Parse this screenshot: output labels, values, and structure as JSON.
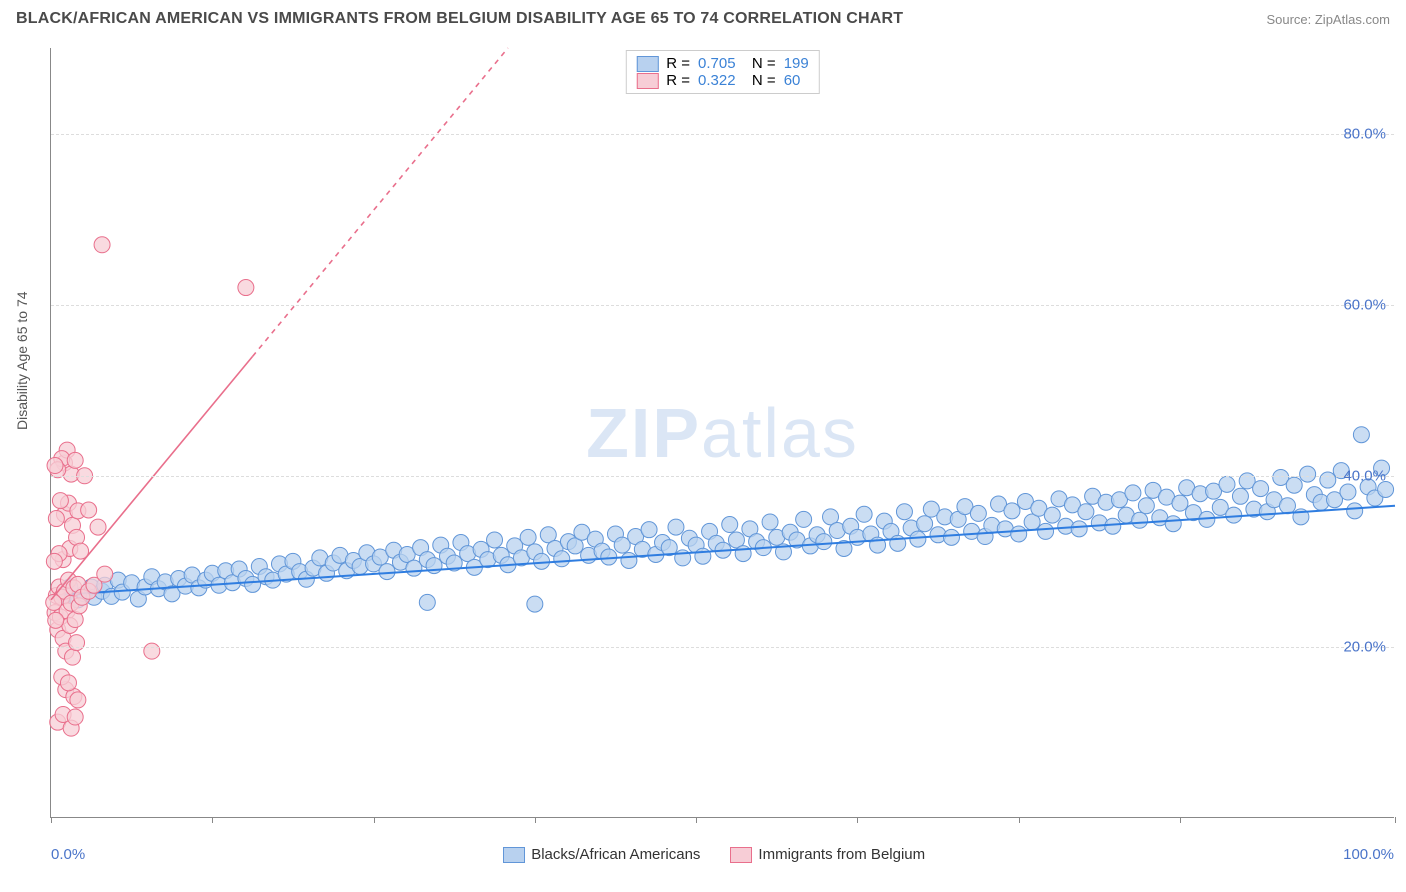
{
  "title": "BLACK/AFRICAN AMERICAN VS IMMIGRANTS FROM BELGIUM DISABILITY AGE 65 TO 74 CORRELATION CHART",
  "source": "Source: ZipAtlas.com",
  "ylabel": "Disability Age 65 to 74",
  "watermark_a": "ZIP",
  "watermark_b": "atlas",
  "chart": {
    "type": "scatter",
    "xlim": [
      0,
      100
    ],
    "ylim": [
      0,
      90
    ],
    "xticks": [
      0,
      12,
      24,
      36,
      48,
      60,
      72,
      84,
      100
    ],
    "yticks": [
      20,
      40,
      60,
      80
    ],
    "ytick_labels": [
      "20.0%",
      "40.0%",
      "60.0%",
      "80.0%"
    ],
    "xaxis_labels": {
      "min": "0.0%",
      "max": "100.0%"
    },
    "grid_color": "#dddddd",
    "axis_color": "#888888",
    "background_color": "#ffffff",
    "marker_radius": 8,
    "marker_stroke_width": 1,
    "label_color": "#4a74c9",
    "series": [
      {
        "name": "Blacks/African Americans",
        "fill": "#b8d1ef",
        "stroke": "#6196d8",
        "R": "0.705",
        "N": "199",
        "trend": {
          "x1": 0,
          "y1": 26,
          "x2": 100,
          "y2": 36.5,
          "dash_from_x": null,
          "color": "#2f7de0",
          "width": 2
        },
        "points": [
          [
            1,
            26
          ],
          [
            1.4,
            27
          ],
          [
            2,
            25.5
          ],
          [
            2.5,
            26.2
          ],
          [
            3,
            27
          ],
          [
            3.2,
            25.8
          ],
          [
            3.8,
            26.5
          ],
          [
            4,
            27.2
          ],
          [
            4.5,
            25.9
          ],
          [
            5,
            27.8
          ],
          [
            5.3,
            26.4
          ],
          [
            6,
            27.5
          ],
          [
            6.5,
            25.6
          ],
          [
            7,
            27
          ],
          [
            7.5,
            28.2
          ],
          [
            8,
            26.8
          ],
          [
            8.5,
            27.6
          ],
          [
            9,
            26.2
          ],
          [
            9.5,
            28
          ],
          [
            10,
            27.1
          ],
          [
            10.5,
            28.4
          ],
          [
            11,
            26.9
          ],
          [
            11.5,
            27.8
          ],
          [
            12,
            28.6
          ],
          [
            12.5,
            27.2
          ],
          [
            13,
            28.9
          ],
          [
            13.5,
            27.5
          ],
          [
            14,
            29.1
          ],
          [
            14.5,
            28
          ],
          [
            15,
            27.3
          ],
          [
            15.5,
            29.4
          ],
          [
            16,
            28.2
          ],
          [
            16.5,
            27.8
          ],
          [
            17,
            29.7
          ],
          [
            17.5,
            28.5
          ],
          [
            18,
            30
          ],
          [
            18.5,
            28.8
          ],
          [
            19,
            27.9
          ],
          [
            19.5,
            29.2
          ],
          [
            20,
            30.4
          ],
          [
            20.5,
            28.6
          ],
          [
            21,
            29.8
          ],
          [
            21.5,
            30.7
          ],
          [
            22,
            28.9
          ],
          [
            22.5,
            30.1
          ],
          [
            23,
            29.4
          ],
          [
            23.5,
            31
          ],
          [
            24,
            29.7
          ],
          [
            24.5,
            30.5
          ],
          [
            25,
            28.8
          ],
          [
            25.5,
            31.3
          ],
          [
            26,
            29.9
          ],
          [
            26.5,
            30.8
          ],
          [
            27,
            29.2
          ],
          [
            27.5,
            31.6
          ],
          [
            28,
            30.2
          ],
          [
            28.5,
            29.5
          ],
          [
            29,
            31.9
          ],
          [
            29.5,
            30.6
          ],
          [
            30,
            29.8
          ],
          [
            30.5,
            32.2
          ],
          [
            31,
            30.9
          ],
          [
            31.5,
            29.3
          ],
          [
            32,
            31.4
          ],
          [
            32.5,
            30.2
          ],
          [
            33,
            32.5
          ],
          [
            33.5,
            30.7
          ],
          [
            34,
            29.6
          ],
          [
            34.5,
            31.8
          ],
          [
            35,
            30.4
          ],
          [
            35.5,
            32.8
          ],
          [
            36,
            31.1
          ],
          [
            36.5,
            30
          ],
          [
            37,
            33.1
          ],
          [
            37.5,
            31.5
          ],
          [
            38,
            30.3
          ],
          [
            38.5,
            32.3
          ],
          [
            39,
            31.8
          ],
          [
            39.5,
            33.4
          ],
          [
            40,
            30.7
          ],
          [
            40.5,
            32.6
          ],
          [
            41,
            31.2
          ],
          [
            41.5,
            30.5
          ],
          [
            42,
            33.2
          ],
          [
            42.5,
            31.9
          ],
          [
            43,
            30.1
          ],
          [
            43.5,
            32.9
          ],
          [
            44,
            31.4
          ],
          [
            44.5,
            33.7
          ],
          [
            45,
            30.8
          ],
          [
            45.5,
            32.2
          ],
          [
            46,
            31.6
          ],
          [
            46.5,
            34
          ],
          [
            47,
            30.4
          ],
          [
            47.5,
            32.7
          ],
          [
            48,
            31.9
          ],
          [
            48.5,
            30.6
          ],
          [
            49,
            33.5
          ],
          [
            49.5,
            32.1
          ],
          [
            50,
            31.3
          ],
          [
            50.5,
            34.3
          ],
          [
            51,
            32.5
          ],
          [
            51.5,
            30.9
          ],
          [
            52,
            33.8
          ],
          [
            52.5,
            32.3
          ],
          [
            53,
            31.6
          ],
          [
            53.5,
            34.6
          ],
          [
            54,
            32.8
          ],
          [
            54.5,
            31.1
          ],
          [
            55,
            33.4
          ],
          [
            55.5,
            32.5
          ],
          [
            56,
            34.9
          ],
          [
            56.5,
            31.8
          ],
          [
            57,
            33.1
          ],
          [
            57.5,
            32.3
          ],
          [
            58,
            35.2
          ],
          [
            58.5,
            33.6
          ],
          [
            59,
            31.5
          ],
          [
            59.5,
            34.1
          ],
          [
            60,
            32.8
          ],
          [
            60.5,
            35.5
          ],
          [
            61,
            33.2
          ],
          [
            61.5,
            31.9
          ],
          [
            62,
            34.7
          ],
          [
            62.5,
            33.5
          ],
          [
            63,
            32.1
          ],
          [
            63.5,
            35.8
          ],
          [
            64,
            33.9
          ],
          [
            64.5,
            32.6
          ],
          [
            65,
            34.4
          ],
          [
            65.5,
            36.1
          ],
          [
            66,
            33.1
          ],
          [
            66.5,
            35.2
          ],
          [
            67,
            32.8
          ],
          [
            67.5,
            34.9
          ],
          [
            68,
            36.4
          ],
          [
            68.5,
            33.5
          ],
          [
            69,
            35.6
          ],
          [
            69.5,
            32.9
          ],
          [
            70,
            34.2
          ],
          [
            70.5,
            36.7
          ],
          [
            71,
            33.8
          ],
          [
            71.5,
            35.9
          ],
          [
            72,
            33.2
          ],
          [
            72.5,
            37
          ],
          [
            73,
            34.6
          ],
          [
            73.5,
            36.2
          ],
          [
            74,
            33.5
          ],
          [
            74.5,
            35.4
          ],
          [
            75,
            37.3
          ],
          [
            75.5,
            34.1
          ],
          [
            76,
            36.6
          ],
          [
            76.5,
            33.8
          ],
          [
            77,
            35.8
          ],
          [
            77.5,
            37.6
          ],
          [
            78,
            34.5
          ],
          [
            78.5,
            36.9
          ],
          [
            79,
            34.1
          ],
          [
            79.5,
            37.2
          ],
          [
            80,
            35.4
          ],
          [
            80.5,
            38
          ],
          [
            81,
            34.8
          ],
          [
            81.5,
            36.5
          ],
          [
            82,
            38.3
          ],
          [
            82.5,
            35.1
          ],
          [
            83,
            37.5
          ],
          [
            83.5,
            34.4
          ],
          [
            84,
            36.8
          ],
          [
            84.5,
            38.6
          ],
          [
            85,
            35.7
          ],
          [
            85.5,
            37.9
          ],
          [
            86,
            34.9
          ],
          [
            86.5,
            38.2
          ],
          [
            87,
            36.3
          ],
          [
            87.5,
            39
          ],
          [
            88,
            35.4
          ],
          [
            88.5,
            37.6
          ],
          [
            89,
            39.4
          ],
          [
            89.5,
            36.1
          ],
          [
            90,
            38.5
          ],
          [
            90.5,
            35.8
          ],
          [
            91,
            37.2
          ],
          [
            91.5,
            39.8
          ],
          [
            92,
            36.5
          ],
          [
            92.5,
            38.9
          ],
          [
            93,
            35.2
          ],
          [
            93.5,
            40.2
          ],
          [
            94,
            37.8
          ],
          [
            94.5,
            36.9
          ],
          [
            95,
            39.5
          ],
          [
            95.5,
            37.2
          ],
          [
            96,
            40.6
          ],
          [
            96.5,
            38.1
          ],
          [
            97,
            35.9
          ],
          [
            97.5,
            44.8
          ],
          [
            98,
            38.7
          ],
          [
            98.5,
            37.4
          ],
          [
            99,
            40.9
          ],
          [
            99.3,
            38.4
          ],
          [
            36,
            25
          ],
          [
            28,
            25.2
          ]
        ]
      },
      {
        "name": "Immigrants from Belgium",
        "fill": "#f7cdd6",
        "stroke": "#e96f8c",
        "R": "0.322",
        "N": "60",
        "trend": {
          "x1": 0,
          "y1": 25.5,
          "x2": 34,
          "y2": 90,
          "dash_from_x": 15,
          "color": "#e96f8c",
          "width": 1.6
        },
        "points": [
          [
            0.3,
            24
          ],
          [
            0.4,
            26
          ],
          [
            0.5,
            22
          ],
          [
            0.6,
            27
          ],
          [
            0.7,
            23.5
          ],
          [
            0.8,
            25.8
          ],
          [
            0.9,
            21
          ],
          [
            1.0,
            26.5
          ],
          [
            1.1,
            19.5
          ],
          [
            1.2,
            24.2
          ],
          [
            1.3,
            27.8
          ],
          [
            1.4,
            22.5
          ],
          [
            1.5,
            25.1
          ],
          [
            1.6,
            18.8
          ],
          [
            1.7,
            26.9
          ],
          [
            1.8,
            23.2
          ],
          [
            1.9,
            20.5
          ],
          [
            2.0,
            27.3
          ],
          [
            2.1,
            24.8
          ],
          [
            0.2,
            25.2
          ],
          [
            0.35,
            23.1
          ],
          [
            1.0,
            41.5
          ],
          [
            1.2,
            43
          ],
          [
            0.8,
            42
          ],
          [
            1.5,
            40.2
          ],
          [
            1.8,
            41.8
          ],
          [
            0.5,
            40.7
          ],
          [
            1.0,
            35.5
          ],
          [
            1.3,
            36.8
          ],
          [
            1.6,
            34.2
          ],
          [
            0.7,
            37.1
          ],
          [
            2.0,
            35.9
          ],
          [
            0.9,
            30.2
          ],
          [
            1.4,
            31.5
          ],
          [
            1.9,
            32.8
          ],
          [
            0.6,
            30.9
          ],
          [
            2.2,
            31.2
          ],
          [
            1.1,
            15
          ],
          [
            1.7,
            14.2
          ],
          [
            0.8,
            16.5
          ],
          [
            2.0,
            13.8
          ],
          [
            1.3,
            15.8
          ],
          [
            0.5,
            11.2
          ],
          [
            1.5,
            10.5
          ],
          [
            0.9,
            12.1
          ],
          [
            1.8,
            11.8
          ],
          [
            0.3,
            41.2
          ],
          [
            0.4,
            35
          ],
          [
            0.25,
            30
          ],
          [
            2.3,
            25.8
          ],
          [
            2.8,
            26.5
          ],
          [
            3.2,
            27.2
          ],
          [
            3.5,
            34
          ],
          [
            4.0,
            28.5
          ],
          [
            7.5,
            19.5
          ],
          [
            3.8,
            67
          ],
          [
            14.5,
            62
          ],
          [
            2.5,
            40
          ],
          [
            2.8,
            36
          ]
        ]
      }
    ]
  },
  "legend_bottom": [
    {
      "label": "Blacks/African Americans",
      "fill": "#b8d1ef",
      "stroke": "#6196d8"
    },
    {
      "label": "Immigrants from Belgium",
      "fill": "#f7cdd6",
      "stroke": "#e96f8c"
    }
  ]
}
